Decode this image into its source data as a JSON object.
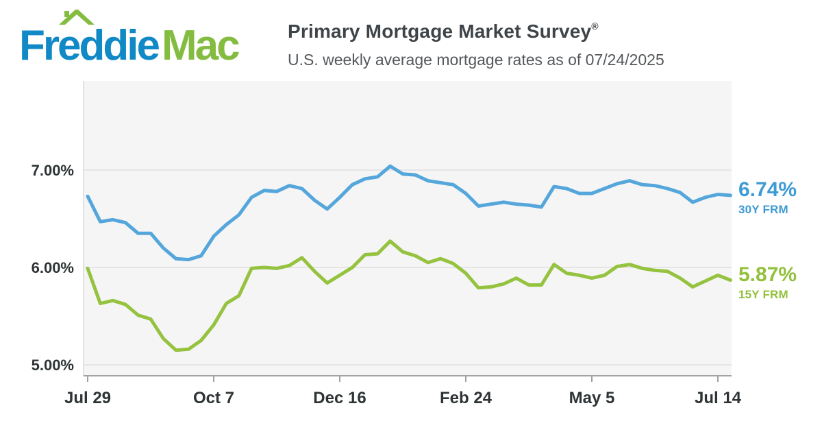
{
  "header": {
    "logo": {
      "word1": "Freddie",
      "word2": "Mac"
    },
    "title": "Primary Mortgage Market Survey",
    "registered_mark": "®",
    "subtitle": "U.S. weekly average mortgage rates as of 07/24/2025",
    "as_of_date": "07/24/2025"
  },
  "colors": {
    "logo_blue": "#1089C6",
    "logo_green": "#84BC41",
    "line_blue": "#54A6DB",
    "line_green": "#95C23F",
    "callout_blue": "#3E9BD5",
    "callout_green": "#93C03D",
    "title_gray": "#3F4449",
    "subtitle_gray": "#54585B",
    "axis_label": "#2E3335",
    "plot_bg": "#F5F5F6",
    "gridline": "#E0E0E0",
    "axis_line": "#A2A2A2"
  },
  "callouts": {
    "rate_30y": {
      "value": "6.74%",
      "label": "30Y FRM"
    },
    "rate_15y": {
      "value": "5.87%",
      "label": "15Y FRM"
    }
  },
  "chart_data": {
    "type": "line",
    "title": "Primary Mortgage Market Survey",
    "subtitle": "U.S. weekly average mortgage rates as of 07/24/2025",
    "x_unit": "week",
    "xlabel": "",
    "ylabel": "",
    "grid": "horizontal",
    "legend_position": "right-annotations",
    "ylim": [
      4.85,
      7.95
    ],
    "x_ticks": [
      {
        "label": "Jul 29",
        "index": 0
      },
      {
        "label": "Oct 7",
        "index": 10
      },
      {
        "label": "Dec 16",
        "index": 20
      },
      {
        "label": "Feb 24",
        "index": 30
      },
      {
        "label": "May 5",
        "index": 40
      },
      {
        "label": "Jul 14",
        "index": 50
      }
    ],
    "y_ticks": [
      {
        "label": "5.00%",
        "value": 5.0
      },
      {
        "label": "6.00%",
        "value": 6.0
      },
      {
        "label": "7.00%",
        "value": 7.0
      }
    ],
    "series": [
      {
        "name": "30Y FRM",
        "color": "#54A6DB",
        "latest": "6.74%",
        "values": [
          6.73,
          6.47,
          6.49,
          6.46,
          6.35,
          6.35,
          6.2,
          6.09,
          6.08,
          6.12,
          6.32,
          6.44,
          6.54,
          6.72,
          6.79,
          6.78,
          6.84,
          6.81,
          6.69,
          6.6,
          6.72,
          6.85,
          6.91,
          6.93,
          7.04,
          6.96,
          6.95,
          6.89,
          6.87,
          6.85,
          6.76,
          6.63,
          6.65,
          6.67,
          6.65,
          6.64,
          6.62,
          6.83,
          6.81,
          6.76,
          6.76,
          6.81,
          6.86,
          6.89,
          6.85,
          6.84,
          6.81,
          6.77,
          6.67,
          6.72,
          6.75,
          6.74
        ]
      },
      {
        "name": "15Y FRM",
        "color": "#95C23F",
        "latest": "5.87%",
        "values": [
          5.99,
          5.63,
          5.66,
          5.62,
          5.51,
          5.47,
          5.27,
          5.15,
          5.16,
          5.25,
          5.41,
          5.63,
          5.71,
          5.99,
          6.0,
          5.99,
          6.02,
          6.1,
          5.96,
          5.84,
          5.92,
          6.0,
          6.13,
          6.14,
          6.27,
          6.16,
          6.12,
          6.05,
          6.09,
          6.04,
          5.94,
          5.79,
          5.8,
          5.83,
          5.89,
          5.82,
          5.82,
          6.03,
          5.94,
          5.92,
          5.89,
          5.92,
          6.01,
          6.03,
          5.99,
          5.97,
          5.96,
          5.89,
          5.8,
          5.86,
          5.92,
          5.87
        ]
      }
    ]
  }
}
